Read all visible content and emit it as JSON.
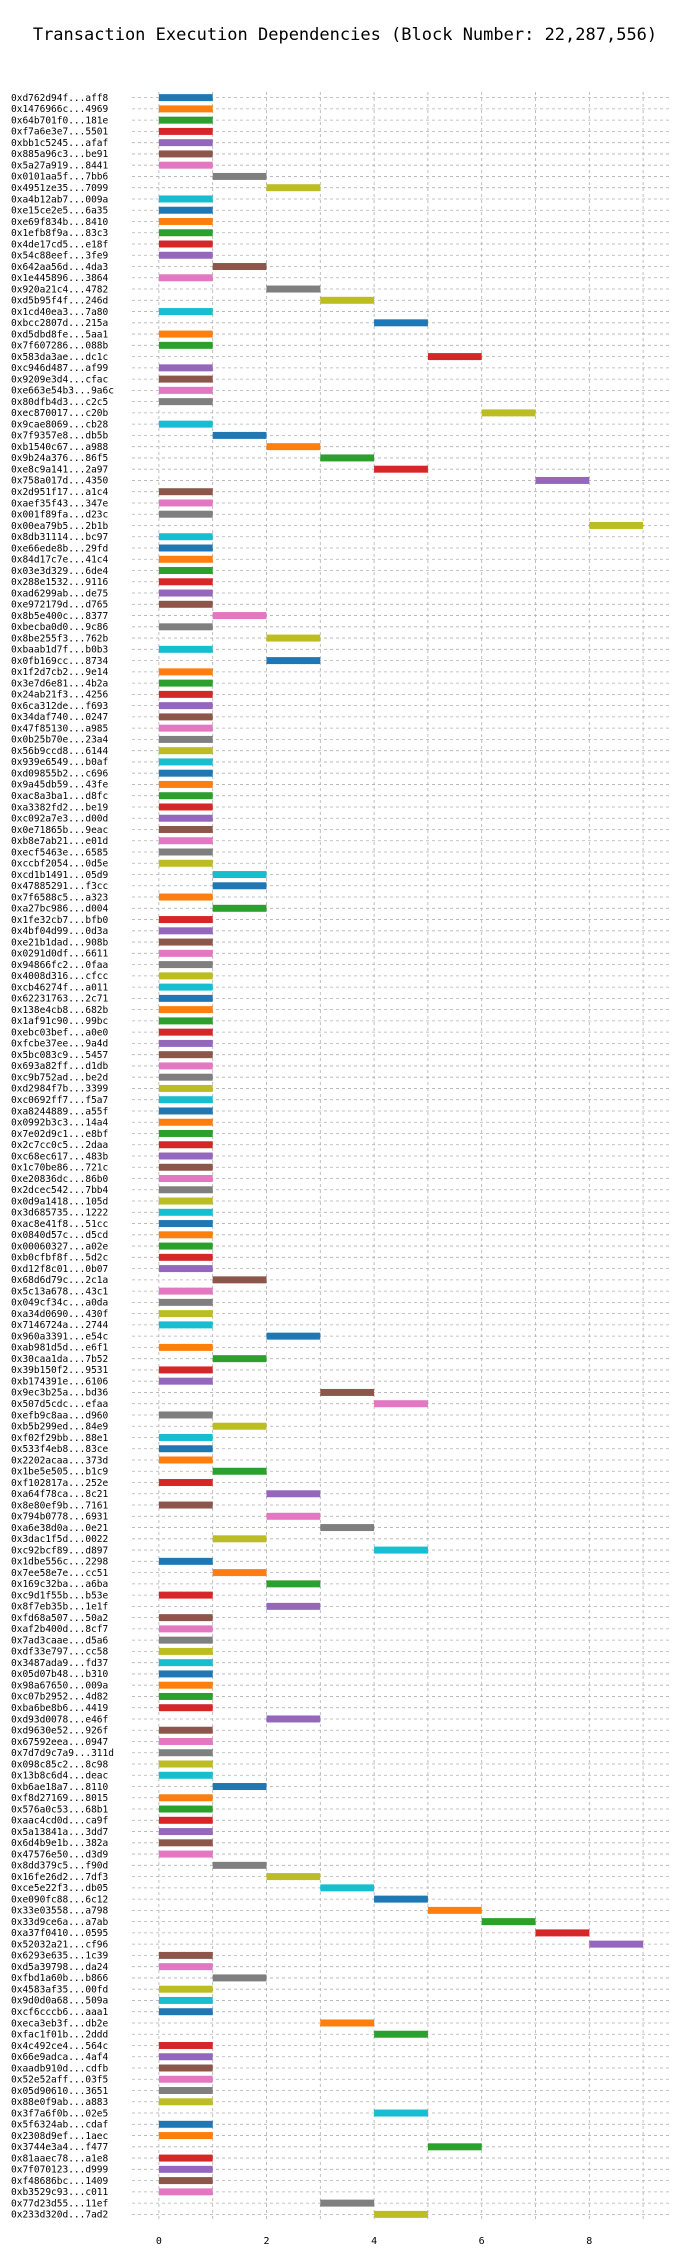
{
  "colors": [
    "#1f77b4",
    "#ff7f0e",
    "#2ca02c",
    "#d62728",
    "#9467bd",
    "#8c564b",
    "#e377c2",
    "#7f7f7f",
    "#bcbd22",
    "#17becf"
  ],
  "chart_data": {
    "type": "bar",
    "orientation": "horizontal",
    "title": "Transaction Execution Dependencies (Block Number: 22,287,556)",
    "xlabel": "",
    "ylabel": "",
    "xlim": [
      -0.5,
      9.5
    ],
    "xticks": [
      0,
      2,
      4,
      6,
      8
    ],
    "grid": true,
    "rows": [
      [
        "0xd762d94f...aff8",
        0
      ],
      [
        "0x1476966c...4969",
        0
      ],
      [
        "0x64b701f0...181e",
        0
      ],
      [
        "0xf7a6e3e7...5501",
        0
      ],
      [
        "0xbb1c5245...afaf",
        0
      ],
      [
        "0x885a96c3...be91",
        0
      ],
      [
        "0x5a27a919...8441",
        0
      ],
      [
        "0x0101aa5f...7bb6",
        1
      ],
      [
        "0x4951ze35...7099",
        2
      ],
      [
        "0xa4b12ab7...009a",
        0
      ],
      [
        "0xe15ce2e5...6a35",
        0
      ],
      [
        "0xe69f834b...8410",
        0
      ],
      [
        "0x1efb8f9a...83c3",
        0
      ],
      [
        "0x4de17cd5...e18f",
        0
      ],
      [
        "0x54c88eef...3fe9",
        0
      ],
      [
        "0x642aa56d...4da3",
        1
      ],
      [
        "0x1e445896...3864",
        0
      ],
      [
        "0x920a21c4...4782",
        2
      ],
      [
        "0xd5b95f4f...246d",
        3
      ],
      [
        "0x1cd40ea3...7a80",
        0
      ],
      [
        "0xbcc2807d...215a",
        4
      ],
      [
        "0xd5dbd8fe...5aa1",
        0
      ],
      [
        "0x7f607286...088b",
        0
      ],
      [
        "0x583da3ae...dc1c",
        5
      ],
      [
        "0xc946d487...af99",
        0
      ],
      [
        "0x9209e3d4...cfac",
        0
      ],
      [
        "0xe663e54b3...9a6c",
        0
      ],
      [
        "0x80dfb4d3...c2c5",
        0
      ],
      [
        "0xec870017...c20b",
        6
      ],
      [
        "0x9cae8069...cb28",
        0
      ],
      [
        "0x7f9357e8...db5b",
        1
      ],
      [
        "0xb1540c67...a988",
        2
      ],
      [
        "0x9b24a376...86f5",
        3
      ],
      [
        "0xe8c9a141...2a97",
        4
      ],
      [
        "0x758a017d...4350",
        7
      ],
      [
        "0x2d951f17...a1c4",
        0
      ],
      [
        "0xaef35f43...347e",
        0
      ],
      [
        "0x001f89fa...d23c",
        0
      ],
      [
        "0x00ea79b5...2b1b",
        8
      ],
      [
        "0x8db31114...bc97",
        0
      ],
      [
        "0xe66ede8b...29fd",
        0
      ],
      [
        "0x84d17c7e...41c4",
        0
      ],
      [
        "0x03e3d329...6de4",
        0
      ],
      [
        "0x288e1532...9116",
        0
      ],
      [
        "0xad6299ab...de75",
        0
      ],
      [
        "0xe972179d...d765",
        0
      ],
      [
        "0x8b5e400c...8377",
        1
      ],
      [
        "0xbecba0d0...9c86",
        0
      ],
      [
        "0x8be255f3...762b",
        2
      ],
      [
        "0xbaab1d7f...b0b3",
        0
      ],
      [
        "0x0fb169cc...8734",
        2
      ],
      [
        "0x1f2d7cb2...9e14",
        0
      ],
      [
        "0x3e7d6e81...4b2a",
        0
      ],
      [
        "0x24ab21f3...4256",
        0
      ],
      [
        "0x6ca312de...f693",
        0
      ],
      [
        "0x34daf740...0247",
        0
      ],
      [
        "0x47f85130...a985",
        0
      ],
      [
        "0x0b25b70e...23a4",
        0
      ],
      [
        "0x56b9ccd8...6144",
        0
      ],
      [
        "0x939e6549...b0af",
        0
      ],
      [
        "0xd09855b2...c696",
        0
      ],
      [
        "0x9a45db59...43fe",
        0
      ],
      [
        "0xac8a3ba1...d8fc",
        0
      ],
      [
        "0xa3382fd2...be19",
        0
      ],
      [
        "0xc092a7e3...d00d",
        0
      ],
      [
        "0x0e71865b...9eac",
        0
      ],
      [
        "0xb8e7ab21...e01d",
        0
      ],
      [
        "0xecf5463e...6585",
        0
      ],
      [
        "0xccbf2054...0d5e",
        0
      ],
      [
        "0xcd1b1491...05d9",
        1
      ],
      [
        "0x47885291...f3cc",
        1
      ],
      [
        "0x7f6588c5...a323",
        0
      ],
      [
        "0xa27bc986...d004",
        1
      ],
      [
        "0x1fe32cb7...bfb0",
        0
      ],
      [
        "0x4bf04d99...0d3a",
        0
      ],
      [
        "0xe21b1dad...908b",
        0
      ],
      [
        "0x0291d0df...6611",
        0
      ],
      [
        "0x94866fc2...0faa",
        0
      ],
      [
        "0x4008d316...cfcc",
        0
      ],
      [
        "0xcb46274f...a011",
        0
      ],
      [
        "0x62231763...2c71",
        0
      ],
      [
        "0x138e4cb8...682b",
        0
      ],
      [
        "0x1af91c90...99bc",
        0
      ],
      [
        "0xebc03bef...a0e0",
        0
      ],
      [
        "0xfcbe37ee...9a4d",
        0
      ],
      [
        "0x5bc083c9...5457",
        0
      ],
      [
        "0x693a82ff...d1db",
        0
      ],
      [
        "0xc9b752ad...be2d",
        0
      ],
      [
        "0xd2984f7b...3399",
        0
      ],
      [
        "0xc0692ff7...f5a7",
        0
      ],
      [
        "0xa8244889...a55f",
        0
      ],
      [
        "0x0992b3c3...14a4",
        0
      ],
      [
        "0x7e02d9c1...e8bf",
        0
      ],
      [
        "0x2c7cc0c5...2daa",
        0
      ],
      [
        "0xc68ec617...483b",
        0
      ],
      [
        "0x1c70be86...721c",
        0
      ],
      [
        "0xe20836dc...86b0",
        0
      ],
      [
        "0x2dcec542...7bb4",
        0
      ],
      [
        "0x0d9a1418...105d",
        0
      ],
      [
        "0x3d685735...1222",
        0
      ],
      [
        "0xac8e41f8...51cc",
        0
      ],
      [
        "0x0840d57c...d5cd",
        0
      ],
      [
        "0x00060327...a02e",
        0
      ],
      [
        "0xb0cfbf8f...5d2c",
        0
      ],
      [
        "0xd12f8c01...0b07",
        0
      ],
      [
        "0x68d6d79c...2c1a",
        1
      ],
      [
        "0x5c13a678...43c1",
        0
      ],
      [
        "0x049cf34c...a0da",
        0
      ],
      [
        "0xa34d0690...430f",
        0
      ],
      [
        "0x7146724a...2744",
        0
      ],
      [
        "0x960a3391...e54c",
        2
      ],
      [
        "0xab981d5d...e6f1",
        0
      ],
      [
        "0x30caa1da...7b52",
        1
      ],
      [
        "0x39b150f2...9531",
        0
      ],
      [
        "0xb174391e...6106",
        0
      ],
      [
        "0x9ec3b25a...bd36",
        3
      ],
      [
        "0x507d5cdc...efaa",
        4
      ],
      [
        "0xefb9c8aa...d960",
        0
      ],
      [
        "0xb5b299ed...84e9",
        1
      ],
      [
        "0xf02f29bb...88e1",
        0
      ],
      [
        "0x533f4eb8...83ce",
        0
      ],
      [
        "0x2202acaa...373d",
        0
      ],
      [
        "0x1be5e505...b1c9",
        1
      ],
      [
        "0xf102817a...252e",
        0
      ],
      [
        "0xa64f78ca...8c21",
        2
      ],
      [
        "0x8e80ef9b...7161",
        0
      ],
      [
        "0x794b0778...6931",
        2
      ],
      [
        "0xa6e38d0a...0e21",
        3
      ],
      [
        "0x3dac1f5d...0022",
        1
      ],
      [
        "0xc92bcf89...d897",
        4
      ],
      [
        "0x1dbe556c...2298",
        0
      ],
      [
        "0x7ee58e7e...cc51",
        1
      ],
      [
        "0x169c32ba...a6ba",
        2
      ],
      [
        "0xc9d1f55b...b53e",
        0
      ],
      [
        "0x8f7eb35b...1e1f",
        2
      ],
      [
        "0xfd68a507...50a2",
        0
      ],
      [
        "0xaf2b400d...8cf7",
        0
      ],
      [
        "0x7ad3caae...d5a6",
        0
      ],
      [
        "0xdf33e797...cc58",
        0
      ],
      [
        "0x3487ada9...fd37",
        0
      ],
      [
        "0x05d07b48...b310",
        0
      ],
      [
        "0x98a67650...009a",
        0
      ],
      [
        "0xc07b2952...4d82",
        0
      ],
      [
        "0xba6be8b6...4419",
        0
      ],
      [
        "0xd93d0078...e46f",
        2
      ],
      [
        "0xd9630e52...926f",
        0
      ],
      [
        "0x67592eea...0947",
        0
      ],
      [
        "0x7d7d9c7a9...311d",
        0
      ],
      [
        "0x098c85c2...8c98",
        0
      ],
      [
        "0x13b8c6d4...deac",
        0
      ],
      [
        "0xb6ae18a7...8110",
        1
      ],
      [
        "0xf8d27169...8015",
        0
      ],
      [
        "0x576a0c53...68b1",
        0
      ],
      [
        "0xaac4cd0d...ca9f",
        0
      ],
      [
        "0x5a13841a...3dd7",
        0
      ],
      [
        "0x6d4b9e1b...382a",
        0
      ],
      [
        "0x47576e50...d3d9",
        0
      ],
      [
        "0x8dd379c5...f90d",
        1
      ],
      [
        "0x16fe26d2...7df3",
        2
      ],
      [
        "0xce5e22f3...db05",
        3
      ],
      [
        "0xe090fc88...6c12",
        4
      ],
      [
        "0x33e03558...a798",
        5
      ],
      [
        "0x33d9ce6a...a7ab",
        6
      ],
      [
        "0xa37f0410...0595",
        7
      ],
      [
        "0x52032a21...cf96",
        8
      ],
      [
        "0x6293e635...1c39",
        0
      ],
      [
        "0xd5a39798...da24",
        0
      ],
      [
        "0xfbd1a60b...b866",
        1
      ],
      [
        "0x4583af35...00fd",
        0
      ],
      [
        "0x9d0d0a68...509a",
        0
      ],
      [
        "0xcf6cccb6...aaa1",
        0
      ],
      [
        "0xeca3eb3f...db2e",
        3
      ],
      [
        "0xfac1f01b...2ddd",
        4
      ],
      [
        "0x4c492ce4...564c",
        0
      ],
      [
        "0x66e9adca...4af4",
        0
      ],
      [
        "0xaadb910d...cdfb",
        0
      ],
      [
        "0x52e52aff...03f5",
        0
      ],
      [
        "0x05d90610...3651",
        0
      ],
      [
        "0x88e0f9ab...a883",
        0
      ],
      [
        "0x3f7a6f0b...02e5",
        4
      ],
      [
        "0x5f6324ab...cdaf",
        0
      ],
      [
        "0x2308d9ef...1aec",
        0
      ],
      [
        "0x3744e3a4...f477",
        5
      ],
      [
        "0x81aaec78...a1e8",
        0
      ],
      [
        "0x7f070123...d999",
        0
      ],
      [
        "0xf48686bc...1409",
        0
      ],
      [
        "0xb3529c93...c011",
        0
      ],
      [
        "0x77d23d55...11ef",
        3
      ],
      [
        "0x233d320d...7ad2",
        4
      ]
    ]
  }
}
